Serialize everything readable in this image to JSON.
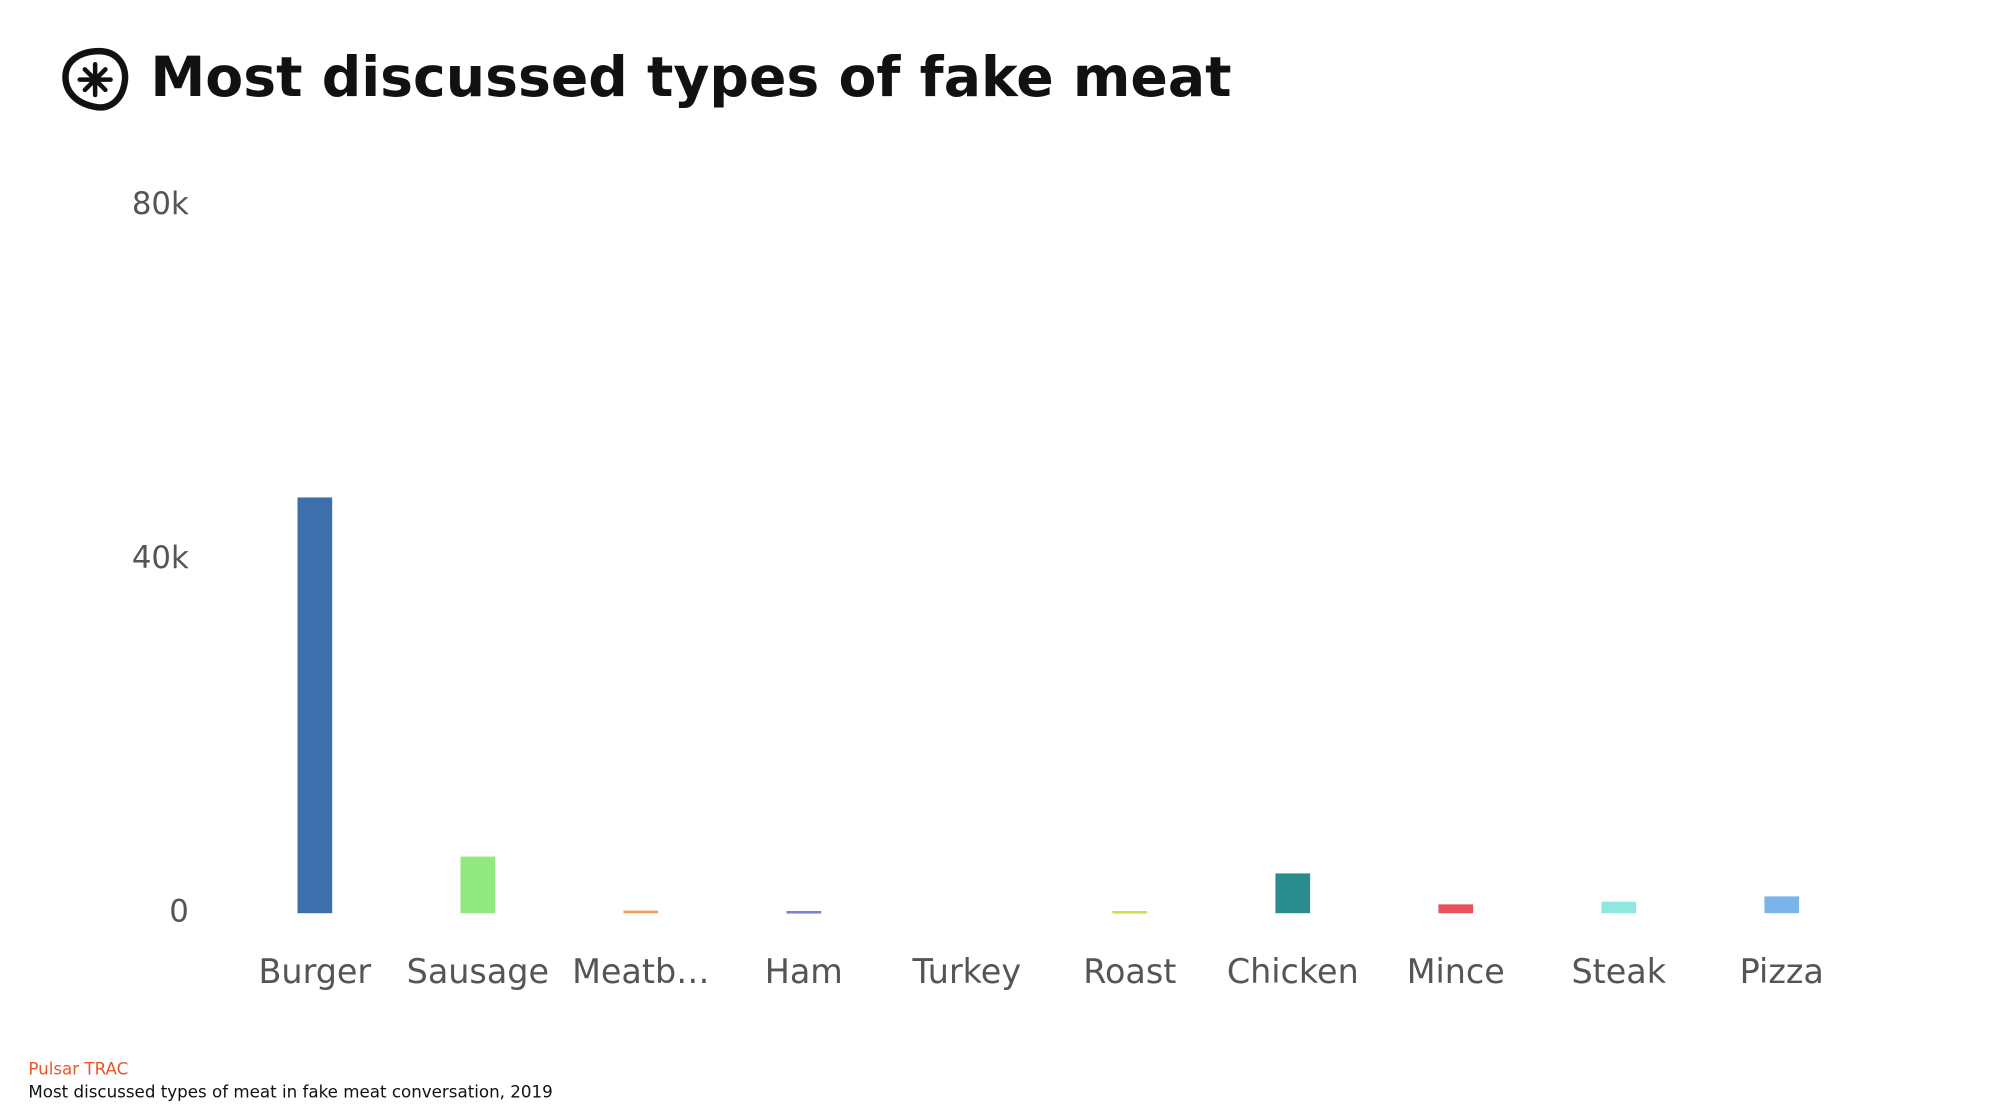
{
  "chart_data": {
    "type": "bar",
    "title": "Most discussed types of fake meat",
    "source": "Pulsar TRAC",
    "caption": "Most discussed types of meat in fake meat conversation, 2019",
    "categories": [
      "Burger",
      "Sausage",
      "Meatb…",
      "Ham",
      "Turkey",
      "Roast",
      "Chicken",
      "Mince",
      "Steak",
      "Pizza"
    ],
    "values": [
      47000,
      6400,
      300,
      250,
      0,
      250,
      4500,
      1000,
      1300,
      1900
    ],
    "colors": [
      "#3d6fad",
      "#90e87e",
      "#f0a060",
      "#7b7fd8",
      null,
      "#d4dc50",
      "#2a8c8c",
      "#e8505a",
      "#8ee8e0",
      "#7ab4ea"
    ],
    "ylim": [
      0,
      80000
    ],
    "yticks": [
      0,
      {
        "value": 40000,
        "label": "40k"
      },
      {
        "value": 80000,
        "label": "80k"
      }
    ],
    "grid": false
  }
}
